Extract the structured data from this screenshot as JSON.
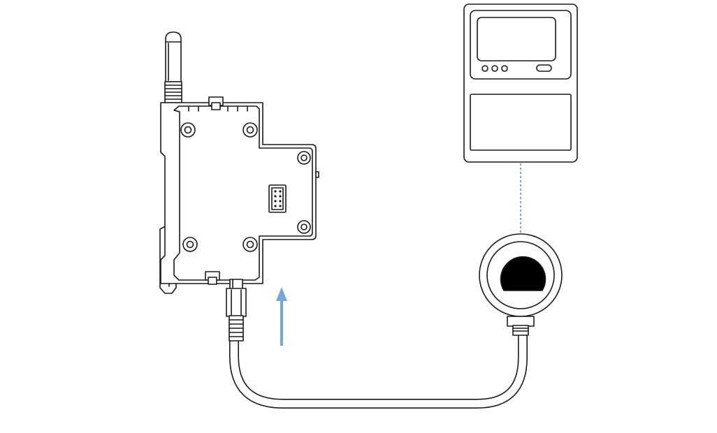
{
  "diagram": {
    "components": [
      {
        "id": "wireless-io-module",
        "icon": "din-rail-module-with-antenna"
      },
      {
        "id": "display-meter",
        "icon": "panel-display-device"
      },
      {
        "id": "pressure-sensor",
        "icon": "round-gauge-sensor"
      }
    ],
    "connections": [
      {
        "from": "wireless-io-module",
        "to": "pressure-sensor",
        "style": "solid-cable"
      },
      {
        "from": "display-meter",
        "to": "pressure-sensor",
        "style": "dotted",
        "color": "#7aa7d8"
      }
    ],
    "indicators": [
      {
        "id": "insert-direction",
        "icon": "arrow-up",
        "color": "#7aa7d8"
      }
    ],
    "colors": {
      "line": "#1a1a1a",
      "accent": "#7aa7d8",
      "background": "#ffffff"
    }
  }
}
